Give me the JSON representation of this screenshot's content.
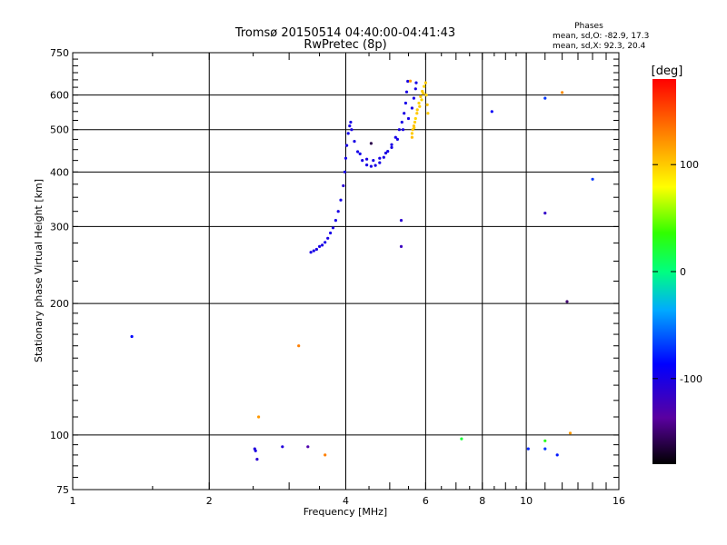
{
  "chart_data": {
    "type": "scatter",
    "title": "Tromsø 20150514 04:40:00-04:41:43",
    "subtitle": "RwPretec (8p)",
    "phases": {
      "heading": "Phases",
      "line_o": "mean, sd,O: -82.9, 17.3",
      "line_x": "mean, sd,X:  92.3, 20.4"
    },
    "xlabel": "Frequency [MHz]",
    "ylabel": "Stationary phase Virtual Height [km]",
    "x_scale": "log",
    "y_scale": "log",
    "xlim": [
      1,
      16
    ],
    "ylim": [
      75,
      750
    ],
    "x_ticks": [
      "1",
      "2",
      "4",
      "6",
      "8",
      "10",
      "16"
    ],
    "y_ticks": [
      "75",
      "100",
      "200",
      "300",
      "400",
      "500",
      "600",
      "750"
    ],
    "grid": true,
    "colorbar": {
      "label": "[deg]",
      "ticks": [
        "100",
        "0",
        "-100"
      ],
      "range": [
        -180,
        180
      ]
    },
    "series": [
      {
        "points": [
          [
            3.35,
            262,
            -100
          ],
          [
            3.4,
            264,
            -98
          ],
          [
            3.45,
            266,
            -102
          ],
          [
            3.5,
            270,
            -99
          ],
          [
            3.55,
            272,
            -100
          ],
          [
            3.6,
            276,
            -97
          ],
          [
            3.65,
            282,
            -100
          ],
          [
            3.7,
            290,
            -98
          ],
          [
            3.75,
            298,
            -101
          ],
          [
            3.8,
            310,
            -99
          ],
          [
            3.85,
            325,
            -100
          ],
          [
            3.9,
            345,
            -98
          ],
          [
            3.95,
            372,
            -110
          ],
          [
            3.98,
            400,
            -100
          ],
          [
            4.0,
            430,
            -98
          ],
          [
            4.02,
            460,
            -100
          ],
          [
            4.05,
            490,
            -97
          ],
          [
            4.08,
            510,
            -100
          ],
          [
            4.1,
            520,
            -99
          ],
          [
            4.12,
            500,
            -101
          ],
          [
            4.18,
            470,
            -100
          ],
          [
            4.25,
            445,
            -98
          ],
          [
            4.35,
            425,
            -100
          ],
          [
            4.45,
            415,
            -99
          ],
          [
            4.55,
            412,
            -101
          ],
          [
            4.65,
            414,
            -100
          ],
          [
            4.75,
            420,
            -98
          ],
          [
            4.85,
            432,
            -100
          ],
          [
            4.95,
            446,
            -99
          ],
          [
            5.05,
            462,
            -100
          ],
          [
            5.15,
            480,
            -98
          ],
          [
            5.25,
            500,
            -100
          ],
          [
            5.32,
            520,
            -99
          ],
          [
            5.38,
            545,
            -100
          ],
          [
            5.42,
            575,
            -98
          ],
          [
            5.45,
            610,
            -100
          ],
          [
            5.48,
            645,
            -99
          ],
          [
            4.3,
            440,
            -96
          ],
          [
            4.45,
            428,
            -102
          ],
          [
            4.6,
            425,
            -100
          ],
          [
            4.75,
            430,
            -99
          ],
          [
            4.9,
            442,
            -101
          ],
          [
            5.05,
            455,
            -100
          ],
          [
            5.2,
            475,
            -98
          ],
          [
            5.35,
            500,
            -100
          ],
          [
            5.5,
            530,
            -99
          ],
          [
            5.6,
            560,
            -100
          ],
          [
            5.65,
            590,
            -98
          ],
          [
            5.7,
            620,
            -100
          ],
          [
            5.72,
            640,
            -99
          ],
          [
            4.55,
            465,
            -160
          ],
          [
            5.3,
            310,
            -110
          ],
          [
            5.3,
            270,
            -120
          ],
          [
            8.4,
            550,
            -90
          ],
          [
            11.0,
            590,
            -70
          ],
          [
            11.0,
            322,
            -115
          ],
          [
            14.0,
            385,
            -70
          ],
          [
            12.3,
            202,
            -150
          ],
          [
            2.52,
            93,
            -105
          ],
          [
            2.53,
            92,
            -100
          ],
          [
            2.55,
            88,
            -110
          ],
          [
            2.9,
            94,
            -105
          ],
          [
            3.3,
            94,
            -130
          ],
          [
            10.1,
            93,
            -75
          ],
          [
            11.0,
            93,
            -70
          ],
          [
            11.7,
            90,
            -80
          ],
          [
            1.35,
            168,
            -85
          ],
          [
            2.57,
            110,
            120
          ],
          [
            3.15,
            160,
            130
          ],
          [
            3.6,
            90,
            130
          ],
          [
            7.2,
            98,
            20
          ],
          [
            11.0,
            97,
            30
          ],
          [
            12.0,
            608,
            125
          ],
          [
            12.5,
            101,
            120
          ],
          [
            5.55,
            646,
            120
          ]
        ]
      },
      {
        "points": [
          [
            5.6,
            490,
            100
          ],
          [
            5.65,
            510,
            105
          ],
          [
            5.7,
            530,
            95
          ],
          [
            5.75,
            555,
            100
          ],
          [
            5.8,
            575,
            98
          ],
          [
            5.85,
            595,
            102
          ],
          [
            5.9,
            612,
            100
          ],
          [
            5.95,
            628,
            97
          ],
          [
            5.62,
            500,
            103
          ],
          [
            5.68,
            520,
            99
          ],
          [
            5.74,
            545,
            101
          ],
          [
            5.82,
            565,
            100
          ],
          [
            5.88,
            585,
            96
          ],
          [
            5.93,
            605,
            100
          ],
          [
            5.6,
            480,
            105
          ],
          [
            5.66,
            505,
            100
          ],
          [
            6.0,
            640,
            100
          ],
          [
            6.02,
            600,
            98
          ],
          [
            6.05,
            570,
            102
          ],
          [
            6.07,
            545,
            100
          ]
        ]
      }
    ]
  }
}
